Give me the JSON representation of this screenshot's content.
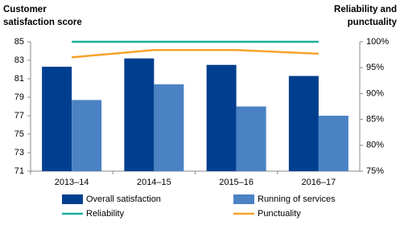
{
  "chart_data": {
    "type": "bar-line",
    "y_label": [
      "Customer",
      "satisfaction  score"
    ],
    "y2_label": [
      "Reliability and",
      "punctuality"
    ],
    "categories": [
      "2013–14",
      "2014–15",
      "2015–16",
      "2016–17"
    ],
    "ylim": [
      71,
      85
    ],
    "yticks": [
      71,
      73,
      75,
      77,
      79,
      81,
      83,
      85
    ],
    "y2lim": [
      75,
      100
    ],
    "y2ticks": [
      {
        "value": 75,
        "label": "75%"
      },
      {
        "value": 80,
        "label": "80%"
      },
      {
        "value": 85,
        "label": "85%"
      },
      {
        "value": 90,
        "label": "90%"
      },
      {
        "value": 95,
        "label": "95%"
      },
      {
        "value": 100,
        "label": "100%"
      }
    ],
    "series": [
      {
        "name": "Overall satisfaction",
        "type": "bar",
        "color": "#003f8f",
        "values": [
          82.3,
          83.2,
          82.5,
          81.3
        ]
      },
      {
        "name": "Running of services",
        "type": "bar",
        "color": "#4a82c4",
        "values": [
          78.7,
          80.4,
          78.0,
          77.0
        ]
      },
      {
        "name": "Reliability",
        "type": "line",
        "axis": "y2",
        "color": "#1aaea0",
        "values": [
          100,
          100,
          100,
          100
        ]
      },
      {
        "name": "Punctuality",
        "type": "line",
        "axis": "y2",
        "color": "#f5a32a",
        "values": [
          97.0,
          98.4,
          98.4,
          97.7
        ]
      }
    ]
  }
}
